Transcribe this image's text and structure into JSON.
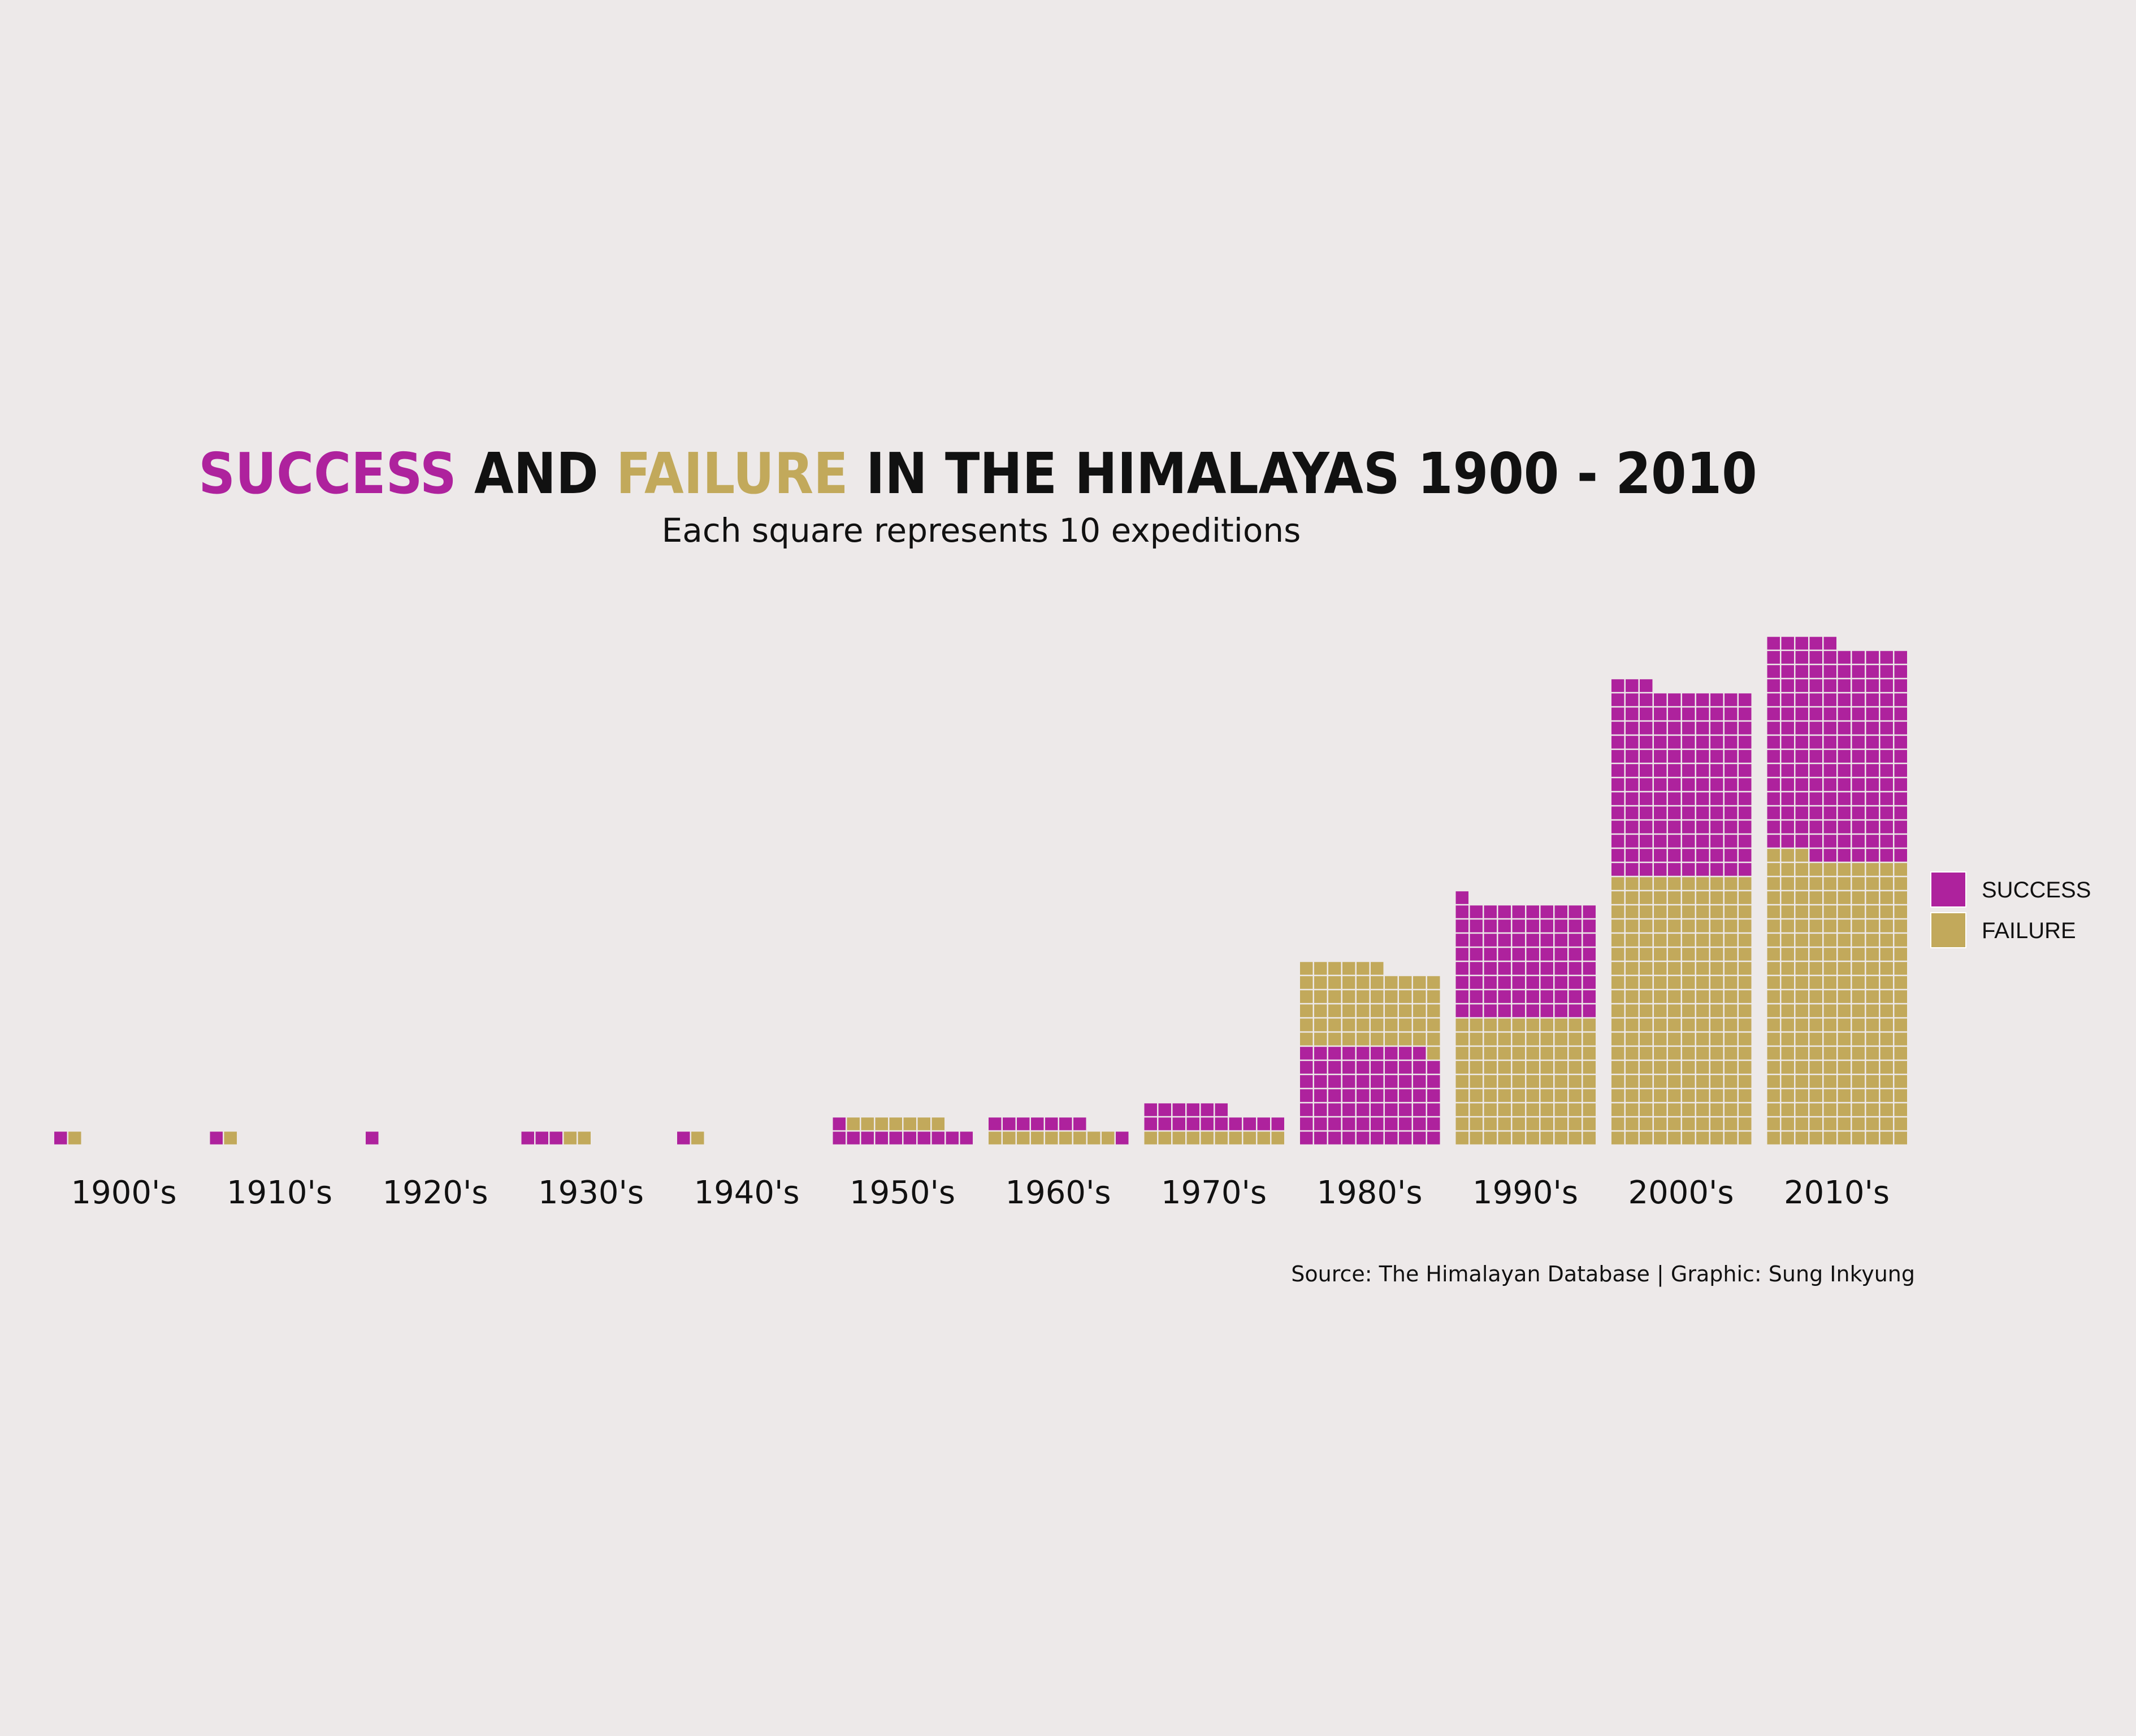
{
  "chart_data": {
    "type": "waffle",
    "title": {
      "success_word": "SUCCESS",
      "and_word": "AND",
      "failure_word": "FAILURE",
      "rest": "IN THE HIMALAYAS 1900 - 2010"
    },
    "subtitle": "Each square represents 10 expeditions",
    "caption": "Source: The Himalayan Database | Graphic: Sung Inkyung",
    "square_unit": 10,
    "columns_per_decade": 10,
    "categories": [
      "1900's",
      "1910's",
      "1920's",
      "1930's",
      "1940's",
      "1950's",
      "1960's",
      "1970's",
      "1980's",
      "1990's",
      "2000's",
      "2010's"
    ],
    "stack_order": [
      [
        "success",
        "failure"
      ],
      [
        "success",
        "failure"
      ],
      [
        "success",
        "failure"
      ],
      [
        "success",
        "failure"
      ],
      [
        "success",
        "failure"
      ],
      [
        "success",
        "failure"
      ],
      [
        "failure",
        "success"
      ],
      [
        "failure",
        "success"
      ],
      [
        "success",
        "failure"
      ],
      [
        "failure",
        "success"
      ],
      [
        "failure",
        "success"
      ],
      [
        "failure",
        "success"
      ]
    ],
    "series": [
      {
        "name": "SUCCESS",
        "key": "success",
        "color": "#AE229D",
        "squares": [
          1,
          1,
          1,
          3,
          1,
          11,
          8,
          16,
          69,
          81,
          133,
          152
        ]
      },
      {
        "name": "FAILURE",
        "key": "failure",
        "color": "#C2A95B",
        "squares": [
          1,
          1,
          0,
          2,
          1,
          7,
          9,
          10,
          57,
          90,
          190,
          203
        ]
      }
    ],
    "legend": {
      "position": "right",
      "items": [
        "SUCCESS",
        "FAILURE"
      ]
    },
    "grid": false
  }
}
